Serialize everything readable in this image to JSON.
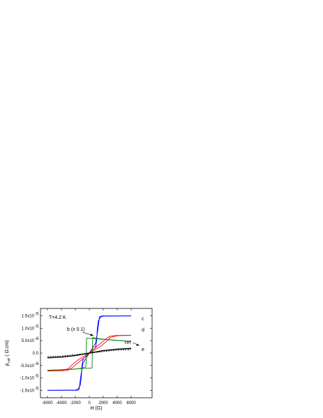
{
  "chart_data": {
    "type": "line",
    "xlabel": "H (G)",
    "ylabel_main": "ρ",
    "ylabel_sub": "Hall",
    "ylabel_unit": "( Ω.cm)",
    "xlim": [
      -7000,
      9000
    ],
    "ylim": [
      -1.8e-05,
      1.8e-05
    ],
    "x_ticks": [
      -6000,
      -4000,
      -2000,
      0,
      2000,
      4000,
      6000
    ],
    "x_tick_labels": [
      "-6000",
      "-4000",
      "-2000",
      "0",
      "2000",
      "4000",
      "6000"
    ],
    "y_ticks": [
      -1.5e-05,
      -1e-05,
      -5e-06,
      0,
      5e-06,
      1e-05,
      1.5e-05
    ],
    "y_tick_labels": [
      "-1.5x10",
      "-1.0x10",
      "-5.0x10",
      "0.0",
      "5.0x10",
      "1.0x10",
      "1.5x10"
    ],
    "y_tick_exponents": [
      "-5",
      "-5",
      "-6",
      "",
      "-6",
      "-5",
      "-5"
    ],
    "grid": false,
    "annotations": {
      "temperature": "T=4.2 K",
      "b": "b (x 0.1)",
      "ref": "ref",
      "c": "c",
      "d": "d",
      "e": "e"
    },
    "series": [
      {
        "id": "c",
        "color": "#0000ff",
        "branches": [
          {
            "x": [
              -6000,
              -2000,
              -1600,
              -1300,
              -1150,
              -1050,
              -950,
              -800,
              0,
              900,
              1150,
              1350,
              1450,
              1600,
              2000,
              6000
            ],
            "y": [
              -1.5e-05,
              -1.49e-05,
              -1.45e-05,
              -1.3e-05,
              -1e-05,
              -5e-06,
              -3e-06,
              -2e-06,
              0,
              4e-06,
              8e-06,
              1.2e-05,
              1.45e-05,
              1.49e-05,
              1.5e-05,
              1.5e-05
            ]
          },
          {
            "x": [
              6000,
              2000,
              1600,
              1300,
              1150,
              1050,
              950,
              800,
              0,
              -900,
              -1150,
              -1350,
              -1450,
              -1600,
              -2000,
              -6000
            ],
            "y": [
              1.5e-05,
              1.49e-05,
              1.45e-05,
              1.3e-05,
              1e-05,
              5e-06,
              3e-06,
              2e-06,
              0,
              -4e-06,
              -8e-06,
              -1.2e-05,
              -1.45e-05,
              -1.49e-05,
              -1.5e-05,
              -1.5e-05
            ]
          }
        ]
      },
      {
        "id": "d",
        "color": "#ff0000",
        "branches": [
          {
            "x": [
              -6000,
              -4000,
              -3000,
              -2500,
              -2000,
              -1500,
              -1000,
              -500,
              0,
              1000,
              2000,
              2500,
              3000,
              3500,
              4000,
              6000
            ],
            "y": [
              -7.2e-06,
              -7e-06,
              -6.3e-06,
              -4.8e-06,
              -3.6e-06,
              -2.5e-06,
              -1.7e-06,
              -8e-07,
              0,
              2.5e-06,
              4.8e-06,
              6e-06,
              6.8e-06,
              7e-06,
              7.1e-06,
              7.2e-06
            ]
          },
          {
            "x": [
              6000,
              4000,
              3000,
              2500,
              2000,
              1500,
              1000,
              500,
              0,
              -1000,
              -2000,
              -2500,
              -3000,
              -3500,
              -4000,
              -6000
            ],
            "y": [
              7.2e-06,
              7e-06,
              6.3e-06,
              4.8e-06,
              3.6e-06,
              2.5e-06,
              1.7e-06,
              8e-07,
              0,
              -2.5e-06,
              -4.8e-06,
              -6e-06,
              -6.8e-06,
              -7e-06,
              -7.1e-06,
              -7.2e-06
            ]
          }
        ]
      },
      {
        "id": "b",
        "color": "#008000",
        "branches": [
          {
            "x": [
              -6000,
              -2000,
              -1000,
              -500,
              -450,
              -400,
              1000,
              3000,
              6000
            ],
            "y": [
              -6.9e-06,
              -6.5e-06,
              -6e-06,
              -5.6e-06,
              -3e-06,
              6e-06,
              5.8e-06,
              5.3e-06,
              4.7e-06
            ]
          },
          {
            "x": [
              6000,
              2000,
              1000,
              500,
              450,
              400,
              -1000,
              -3000,
              -6000
            ],
            "y": [
              4.7e-06,
              5.6e-06,
              6e-06,
              6.3e-06,
              3e-06,
              -6e-06,
              -6.2e-06,
              -6.6e-06,
              -6.9e-06
            ]
          }
        ]
      },
      {
        "id": "e",
        "color": "#000000",
        "branches": [
          {
            "x": [
              -6000,
              -4000,
              -2000,
              0,
              2000,
              4000,
              6000
            ],
            "y": [
              -1.9e-06,
              -1.6e-06,
              -1e-06,
              0,
              1e-06,
              1.6e-06,
              1.9e-06
            ]
          }
        ]
      },
      {
        "id": "ref",
        "color": "#000000",
        "dashed": true,
        "branches": [
          {
            "x": [
              -6000,
              -4000,
              -2000,
              0,
              2000,
              4000,
              6000
            ],
            "y": [
              -1.4e-06,
              -1.2e-06,
              -6e-07,
              0,
              6e-07,
              1.2e-06,
              1.4e-06
            ]
          }
        ]
      }
    ]
  }
}
